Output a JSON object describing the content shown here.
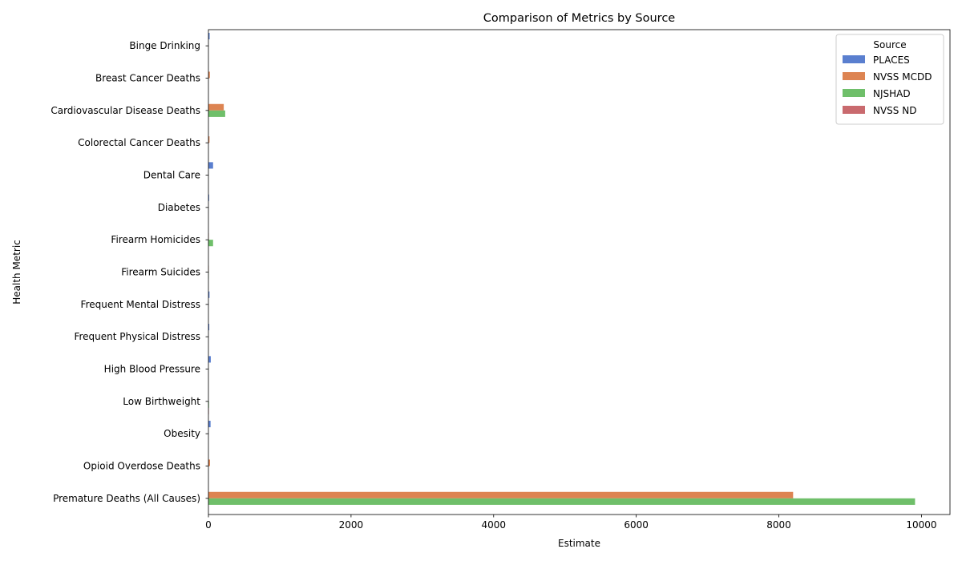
{
  "chart_data": {
    "type": "bar",
    "orientation": "horizontal",
    "title": "Comparison of Metrics by Source",
    "xlabel": "Estimate",
    "ylabel": "Health Metric",
    "xlim": [
      0,
      10400
    ],
    "xticks": [
      0,
      2000,
      4000,
      6000,
      8000,
      10000
    ],
    "grid": false,
    "legend": {
      "title": "Source",
      "position": "top-right"
    },
    "categories": [
      "Binge Drinking",
      "Breast Cancer Deaths",
      "Cardiovascular Disease Deaths",
      "Colorectal Cancer Deaths",
      "Dental Care",
      "Diabetes",
      "Firearm Homicides",
      "Firearm Suicides",
      "Frequent Mental Distress",
      "Frequent Physical Distress",
      "High Blood Pressure",
      "Low Birthweight",
      "Obesity",
      "Opioid Overdose Deaths",
      "Premature Deaths (All Causes)"
    ],
    "series": [
      {
        "name": "PLACES",
        "color": "#5a7fcf",
        "values": [
          17,
          0,
          0,
          0,
          65,
          10,
          0,
          0,
          15,
          12,
          33,
          0,
          30,
          0,
          0
        ]
      },
      {
        "name": "NVSS MCDD",
        "color": "#dd8452",
        "values": [
          0,
          20,
          215,
          15,
          0,
          0,
          5,
          5,
          0,
          0,
          0,
          0,
          0,
          22,
          8200
        ]
      },
      {
        "name": "NJSHAD",
        "color": "#6fbf6a",
        "values": [
          0,
          0,
          235,
          0,
          0,
          0,
          65,
          4,
          0,
          0,
          0,
          8,
          0,
          0,
          9910
        ]
      },
      {
        "name": "NVSS ND",
        "color": "#c96a6e",
        "values": [
          0,
          0,
          0,
          0,
          0,
          0,
          0,
          0,
          0,
          0,
          0,
          6,
          0,
          0,
          0
        ]
      }
    ]
  }
}
